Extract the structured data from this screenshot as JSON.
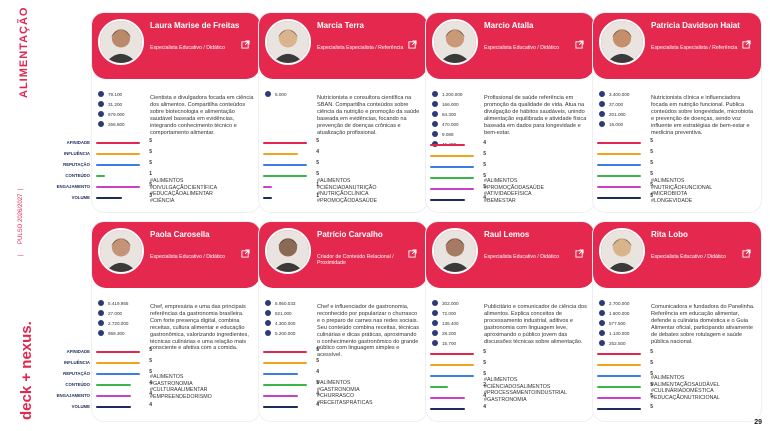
{
  "side": {
    "section": "ALIMENTAÇÃO",
    "period": "2026/2027",
    "product": "PULSO",
    "brand": "deck + nexus."
  },
  "metric_labels": [
    "AFINIDADE",
    "INFLUÊNCIA",
    "REPUTAÇÃO",
    "CONTEÚDO",
    "ENGAJAMENTO",
    "VOLUME"
  ],
  "metric_colors": [
    "#e0274f",
    "#f0a31c",
    "#3d7de3",
    "#39b54a",
    "#c940c9",
    "#1c2a5c"
  ],
  "page_number": "29",
  "cards": [
    {
      "name": "Laura Marise de Freitas",
      "role": "Especialista Educativo / Didático",
      "socials": [
        "79.100",
        "31.200",
        "579.000",
        "266.800"
      ],
      "bio": "Cientista e divulgadora focada em ciência dos alimentos. Compartilha conteúdos sobre biotecnologia e alimentação saudável baseada em evidências, integrando conhecimento técnico e comportamento alimentar.",
      "tags": "#ALIMENTOS #DIVULGAÇÃOCIENTÍFICA #EDUCAÇÃOALIMENTAR #CIÊNCIA",
      "scores": [
        5,
        5,
        5,
        1,
        5,
        3
      ]
    },
    {
      "name": "Marcia Terra",
      "role": "Especialista Especialista / Referência",
      "socials": [
        "5.000"
      ],
      "bio": "Nutricionista e consultora científica na SBAN. Compartilha conteúdos sobre ciência da nutrição e promoção da saúde baseada em evidências, focando na prevenção de doenças crônicas e atualização profissional.",
      "tags": "#ALIMENTOS #CIÊNCIADANUTRIÇÃO #NUTRIÇÃOCLÍNICA #PROMOÇÃODASAÚDE",
      "scores": [
        5,
        4,
        5,
        5,
        1,
        1
      ]
    },
    {
      "name": "Marcio Atalla",
      "role": "Especialista Educativo / Didático",
      "socials": [
        "1.200.000",
        "166.000",
        "84.300",
        "470.000",
        "9.088",
        "46.400"
      ],
      "bio": "Profissional de saúde referência em promoção da qualidade de vida. Atua na divulgação de hábitos saudáveis, unindo alimentação equilibrada e atividade física baseada em dados para longevidade e bem-estar.",
      "tags": "#ALIMENTOS #PROMOÇÃODASAÚDE #ATIVIDADEFÍSICA #BEMESTAR",
      "scores": [
        4,
        5,
        5,
        5,
        5,
        4
      ]
    },
    {
      "name": "Patricia Davidson Haiat",
      "role": "Especialista Especialista / Referência",
      "socials": [
        "3.400.000",
        "37.000",
        "201.000",
        "15.000"
      ],
      "bio": "Nutricionista clínica e influenciadora focada em nutrição funcional. Publica conteúdos sobre longevidade, microbiota e prevenção de doenças, sendo voz influente em estratégias de bem-estar e medicina preventiva.",
      "tags": "#ALIMENTOS #NUTRIÇÃOFUNCIONAL #MICROBIOTA #LONGEVIDADE",
      "scores": [
        5,
        5,
        5,
        5,
        5,
        5
      ]
    },
    {
      "name": "Paola Carosella",
      "role": "Especialista Educativo / Didático",
      "socials": [
        "5.419.955",
        "27.000",
        "2.720.000",
        "958.300"
      ],
      "bio": "Chef, empresária e uma das principais referências da gastronomia brasileira. Com forte presença digital, combina receitas, cultura alimentar e educação gastronômica, valorizando ingredientes, técnicas culinárias e uma relação mais consciente e afetiva com a comida.",
      "tags": "#ALIMENTOS #GASTRONOMIA #CULTURAALIMENTAR #EMPREENDEDORISMO",
      "scores": [
        5,
        5,
        5,
        4,
        4,
        4
      ]
    },
    {
      "name": "Patrício Carvalho",
      "role": "Criador de Conteúdo Relacional / Proximidade",
      "socials": [
        "5.950.033",
        "821.000",
        "4.300.000",
        "5.200.000"
      ],
      "bio": "Chef e influenciador de gastronomia, reconhecido por popularizar o churrasco e o preparo de carnes nas redes sociais. Seu conteúdo combina receitas, técnicas culinárias e dicas práticas, aproximando o conhecimento gastronômico do grande público com linguagem simples e acessível.",
      "tags": "#ALIMENTOS #GASTRONOMIA #CHURRASCO #RECEITASPRÁTICAS",
      "scores": [
        5,
        5,
        4,
        5,
        4,
        4
      ]
    },
    {
      "name": "Raul Lemos",
      "role": "Especialista Educativo / Didático",
      "socials": [
        "302.000",
        "72.000",
        "136.400",
        "28.200",
        "15.700"
      ],
      "bio": "Publicitário e comunicador de ciência dos alimentos. Explica conceitos de processamento industrial, aditivos e gastronomia com linguagem leve, aproximando o público jovem das discussões técnicas sobre alimentação.",
      "tags": "#ALIMENTOS #CIÊNCIADOSALIMENTOS #PROCESSAMENTOINDUSTRIAL #GASTRONOMIA",
      "scores": [
        5,
        5,
        5,
        2,
        4,
        4
      ]
    },
    {
      "name": "Rita Lobo",
      "role": "Especialista Educativo / Didático",
      "socials": [
        "2.700.000",
        "1.800.000",
        "577.500",
        "1.130.000",
        "252.500"
      ],
      "bio": "Comunicadora e fundadora do Panelinha. Referência em educação alimentar, defende a culinária doméstica e o Guia Alimentar oficial, participando ativamente de debates sobre rotulagem e saúde pública nacional.",
      "tags": "#ALIMENTOS #ALIMENTAÇÃOSAUDÁVEL #CULINÁRIADOMÉSTICA #EDUCAÇÃONUTRICIONAL",
      "scores": [
        5,
        5,
        5,
        5,
        5,
        5
      ]
    }
  ]
}
